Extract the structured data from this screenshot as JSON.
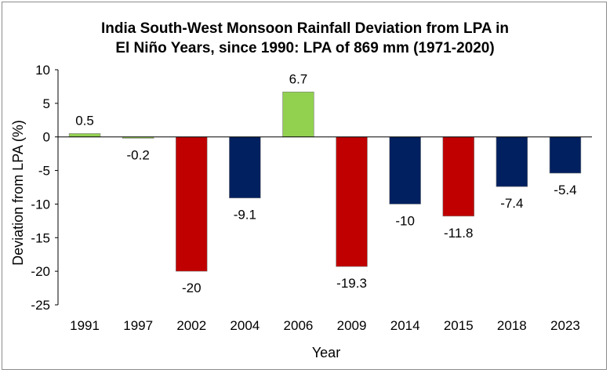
{
  "chart_data": {
    "type": "bar",
    "title_lines": [
      "India South-West Monsoon Rainfall Deviation from LPA in",
      "El Niño Years, since 1990: LPA of 869 mm (1971-2020)"
    ],
    "xlabel": "Year",
    "ylabel": "Deviation from LPA (%)",
    "ylim": [
      -25,
      10
    ],
    "yticks": [
      10,
      5,
      0,
      -5,
      -10,
      -15,
      -20,
      -25
    ],
    "ytick_labels": [
      "10",
      "5",
      "0",
      "-5",
      "-10",
      "-15",
      "-20",
      "-25"
    ],
    "grid": false,
    "legend": "none",
    "categories": [
      "1991",
      "1997",
      "2002",
      "2004",
      "2006",
      "2009",
      "2014",
      "2015",
      "2018",
      "2023"
    ],
    "values": [
      0.5,
      -0.2,
      -20,
      -9.1,
      6.7,
      -19.3,
      -10,
      -11.8,
      -7.4,
      -5.4
    ],
    "value_labels": [
      "0.5",
      "-0.2",
      "-20",
      "-9.1",
      "6.7",
      "-19.3",
      "-10",
      "-11.8",
      "-7.4",
      "-5.4"
    ],
    "bar_colors": [
      "#92d050",
      "#92d050",
      "#c00000",
      "#002060",
      "#92d050",
      "#c00000",
      "#002060",
      "#c00000",
      "#002060",
      "#002060"
    ]
  }
}
